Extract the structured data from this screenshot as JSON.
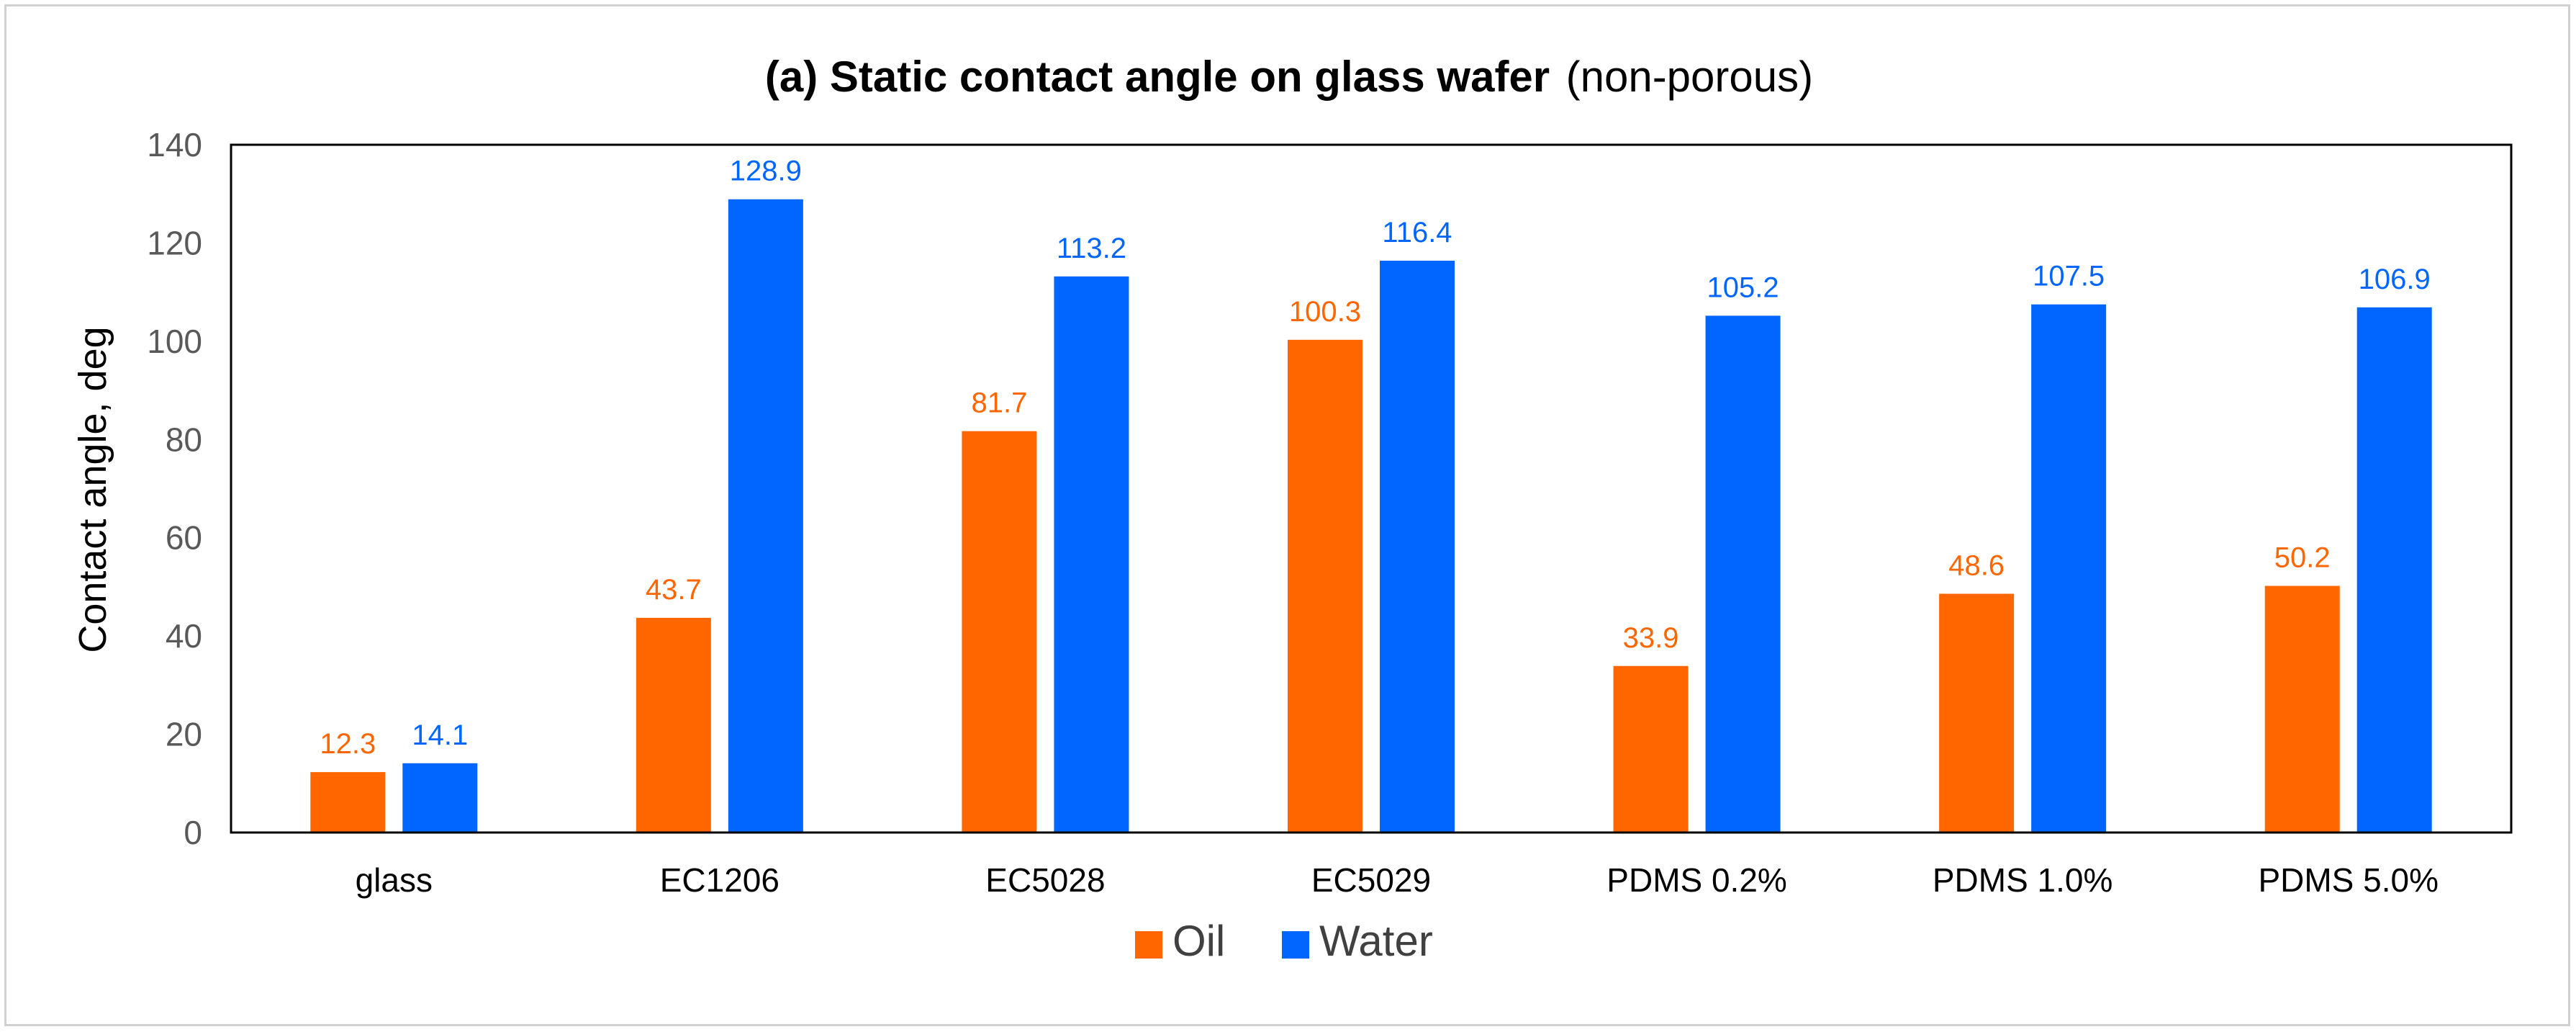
{
  "chart_data": {
    "type": "bar",
    "title": {
      "bold": "(a) Static contact angle on glass wafer",
      "normal": "(non-porous)"
    },
    "xlabel": "",
    "ylabel": "Contact angle, deg",
    "ylim": [
      0,
      140
    ],
    "yticks": [
      0,
      20,
      40,
      60,
      80,
      100,
      120,
      140
    ],
    "grid": false,
    "legend_position": "bottom",
    "categories": [
      "glass",
      "EC1206",
      "EC5028",
      "EC5029",
      "PDMS 0.2%",
      "PDMS 1.0%",
      "PDMS 5.0%"
    ],
    "series": [
      {
        "name": "Oil",
        "color": "#ff6600",
        "values": [
          12.3,
          43.7,
          81.7,
          100.3,
          33.9,
          48.6,
          50.2
        ],
        "labels": [
          "12.3",
          "43.7",
          "81.7",
          "100.3",
          "33.9",
          "48.6",
          "50.2"
        ]
      },
      {
        "name": "Water",
        "color": "#0066ff",
        "values": [
          14.1,
          128.9,
          113.2,
          116.4,
          105.2,
          107.5,
          106.9
        ],
        "labels": [
          "14.1",
          "128.9",
          "113.2",
          "116.4",
          "105.2",
          "107.5",
          "106.9"
        ]
      }
    ]
  }
}
